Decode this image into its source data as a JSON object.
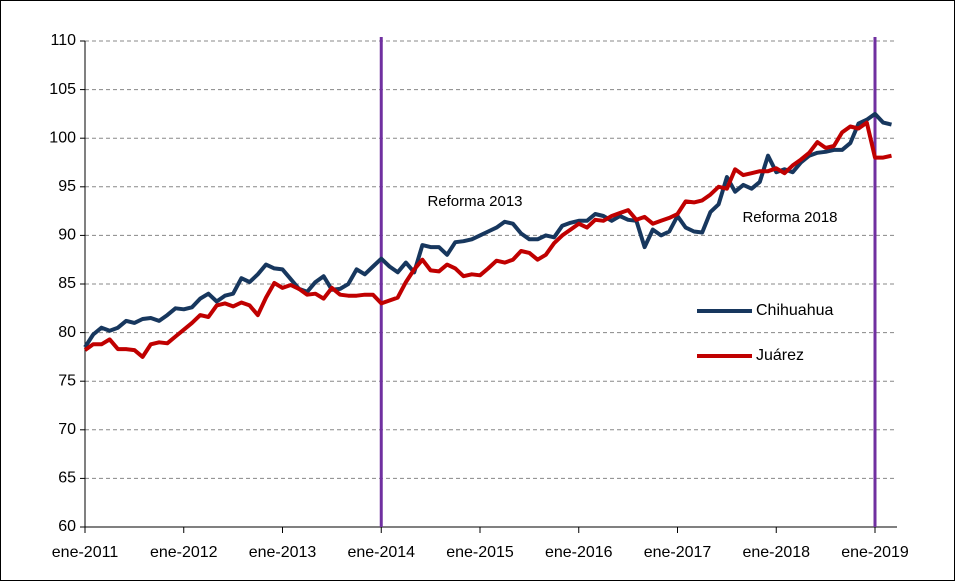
{
  "chart_data": {
    "type": "line",
    "categories": [
      "ene-2011",
      null,
      null,
      null,
      null,
      null,
      null,
      null,
      null,
      null,
      null,
      null,
      "ene-2012",
      null,
      null,
      null,
      null,
      null,
      null,
      null,
      null,
      null,
      null,
      null,
      "ene-2013",
      null,
      null,
      null,
      null,
      null,
      null,
      null,
      null,
      null,
      null,
      null,
      "ene-2014",
      null,
      null,
      null,
      null,
      null,
      null,
      null,
      null,
      null,
      null,
      null,
      "ene-2015",
      null,
      null,
      null,
      null,
      null,
      null,
      null,
      null,
      null,
      null,
      null,
      "ene-2016",
      null,
      null,
      null,
      null,
      null,
      null,
      null,
      null,
      null,
      null,
      null,
      "ene-2017",
      null,
      null,
      null,
      null,
      null,
      null,
      null,
      null,
      null,
      null,
      null,
      "ene-2018",
      null,
      null,
      null,
      null,
      null,
      null,
      null,
      null,
      null,
      null,
      null,
      "ene-2019",
      null,
      null
    ],
    "series": [
      {
        "name": "Chihuahua",
        "color": "#17375e",
        "values": [
          78.5,
          79.8,
          80.5,
          80.2,
          80.5,
          81.2,
          81.0,
          81.4,
          81.5,
          81.2,
          81.8,
          82.5,
          82.4,
          82.6,
          83.5,
          84.0,
          83.2,
          83.8,
          84.0,
          85.6,
          85.2,
          86.0,
          87.0,
          86.6,
          86.5,
          85.5,
          84.5,
          84.2,
          85.2,
          85.8,
          84.4,
          84.5,
          85.0,
          86.5,
          86.0,
          86.8,
          87.6,
          86.8,
          86.2,
          87.2,
          86.2,
          89.0,
          88.8,
          88.8,
          88.0,
          89.3,
          89.4,
          89.6,
          90.0,
          90.4,
          90.8,
          91.4,
          91.2,
          90.2,
          89.6,
          89.6,
          90.0,
          89.8,
          91.0,
          91.3,
          91.5,
          91.5,
          92.2,
          92.0,
          91.5,
          92.0,
          91.6,
          91.5,
          88.8,
          90.6,
          90.0,
          90.4,
          92.0,
          90.8,
          90.4,
          90.3,
          92.4,
          93.2,
          96.0,
          94.5,
          95.2,
          94.8,
          95.5,
          98.2,
          96.5,
          96.8,
          96.5,
          97.5,
          98.2,
          98.5,
          98.6,
          98.8,
          98.8,
          99.5,
          101.5,
          101.9,
          102.5,
          101.6,
          101.4
        ]
      },
      {
        "name": "Juárez",
        "color": "#c00000",
        "values": [
          78.2,
          78.8,
          78.8,
          79.3,
          78.3,
          78.3,
          78.2,
          77.5,
          78.8,
          79.0,
          78.9,
          79.6,
          80.3,
          81.0,
          81.8,
          81.6,
          82.8,
          83.0,
          82.7,
          83.1,
          82.8,
          81.8,
          83.6,
          85.1,
          84.6,
          84.9,
          84.5,
          83.9,
          84.0,
          83.5,
          84.6,
          83.9,
          83.8,
          83.8,
          83.9,
          83.9,
          83.0,
          83.3,
          83.6,
          85.2,
          86.5,
          87.5,
          86.4,
          86.3,
          87.0,
          86.6,
          85.8,
          86.0,
          85.9,
          86.6,
          87.4,
          87.2,
          87.5,
          88.4,
          88.2,
          87.5,
          88.0,
          89.2,
          90.0,
          90.6,
          91.2,
          90.8,
          91.6,
          91.5,
          92.0,
          92.3,
          92.6,
          91.6,
          91.9,
          91.2,
          91.5,
          91.8,
          92.2,
          93.5,
          93.4,
          93.6,
          94.2,
          95.0,
          94.8,
          96.8,
          96.2,
          96.4,
          96.6,
          96.6,
          96.9,
          96.4,
          97.2,
          97.8,
          98.5,
          99.6,
          99.0,
          99.2,
          100.6,
          101.2,
          101.0,
          101.6,
          98.0,
          98.0,
          98.2
        ]
      }
    ],
    "ylim": [
      60,
      110
    ],
    "yticks": [
      60,
      65,
      70,
      75,
      80,
      85,
      90,
      95,
      100,
      105,
      110
    ],
    "grid": true,
    "legend": "right",
    "annotations": [
      {
        "text": "Reforma 2013",
        "at": "ene-2014",
        "color": "#7030a0"
      },
      {
        "text": "Reforma 2018",
        "at": "ene-2019",
        "color": "#7030a0"
      }
    ]
  }
}
